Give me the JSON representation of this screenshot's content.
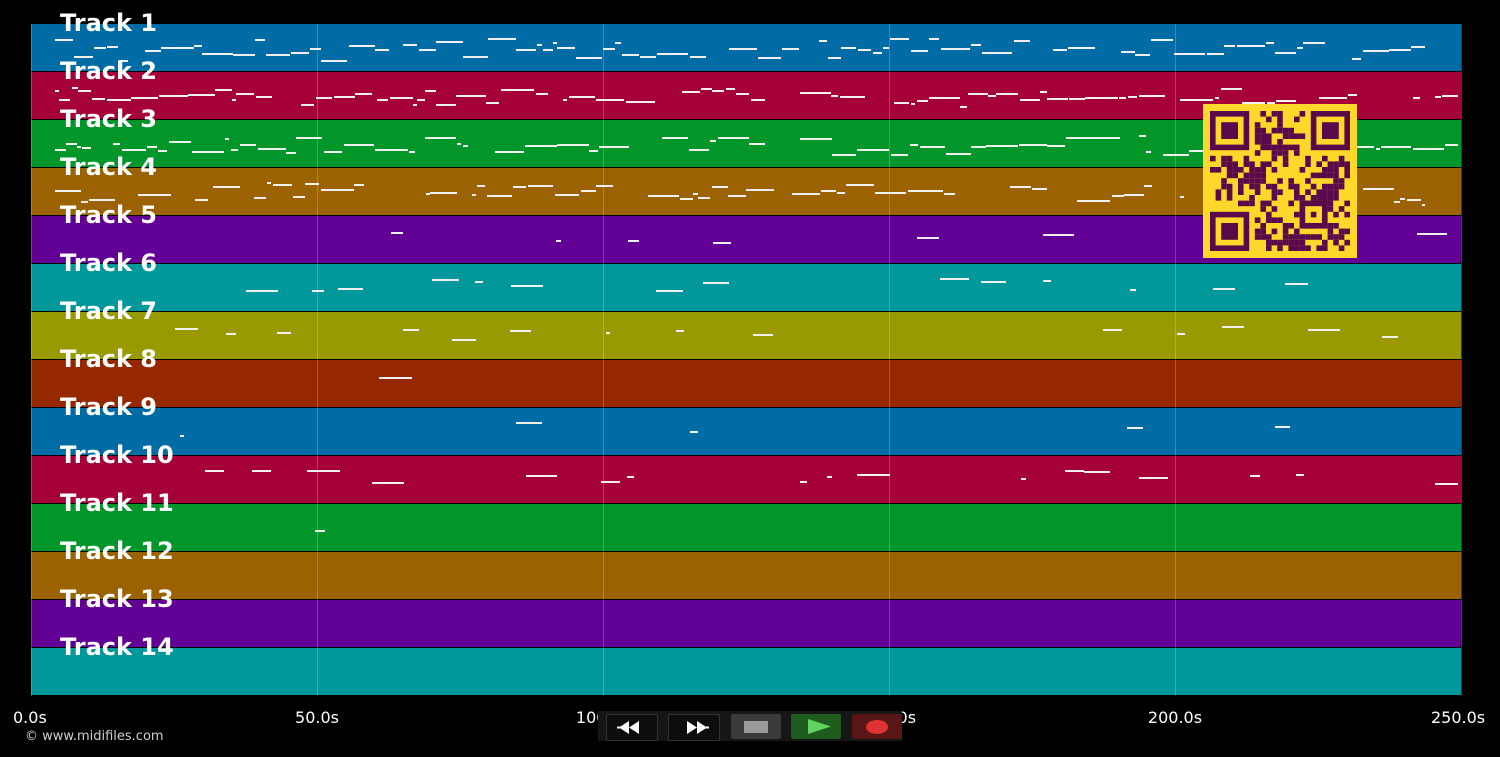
{
  "tracks": [
    {
      "label": "Track 1",
      "color": "#006ca6"
    },
    {
      "label": "Track 2",
      "color": "#a60038"
    },
    {
      "label": "Track 3",
      "color": "#00962a"
    },
    {
      "label": "Track 4",
      "color": "#9a6200"
    },
    {
      "label": "Track 5",
      "color": "#620095"
    },
    {
      "label": "Track 6",
      "color": "#00989a"
    },
    {
      "label": "Track 7",
      "color": "#989a00"
    },
    {
      "label": "Track 8",
      "color": "#962800"
    },
    {
      "label": "Track 9",
      "color": "#006ca6"
    },
    {
      "label": "Track 10",
      "color": "#a60038"
    },
    {
      "label": "Track 11",
      "color": "#00962a"
    },
    {
      "label": "Track 12",
      "color": "#9a6200"
    },
    {
      "label": "Track 13",
      "color": "#620095"
    },
    {
      "label": "Track 14",
      "color": "#00989a"
    }
  ],
  "timeline": {
    "ticks": [
      "0.0s",
      "50.0s",
      "100.0s",
      "150.0s",
      "200.0s",
      "250.0s"
    ]
  },
  "footer": {
    "copyright": "© www.midifiles.com"
  },
  "transport": {
    "buttons": [
      {
        "name": "rewind-button",
        "icon": "rewind-icon"
      },
      {
        "name": "fast-forward-button",
        "icon": "fast-forward-icon"
      },
      {
        "name": "stop-button",
        "icon": "stop-icon"
      },
      {
        "name": "play-button",
        "icon": "play-icon"
      },
      {
        "name": "record-button",
        "icon": "record-icon"
      }
    ]
  },
  "qr": {
    "icon": "qr-code-icon",
    "fg": "#5a0a4a",
    "bg": "#fbd829"
  }
}
